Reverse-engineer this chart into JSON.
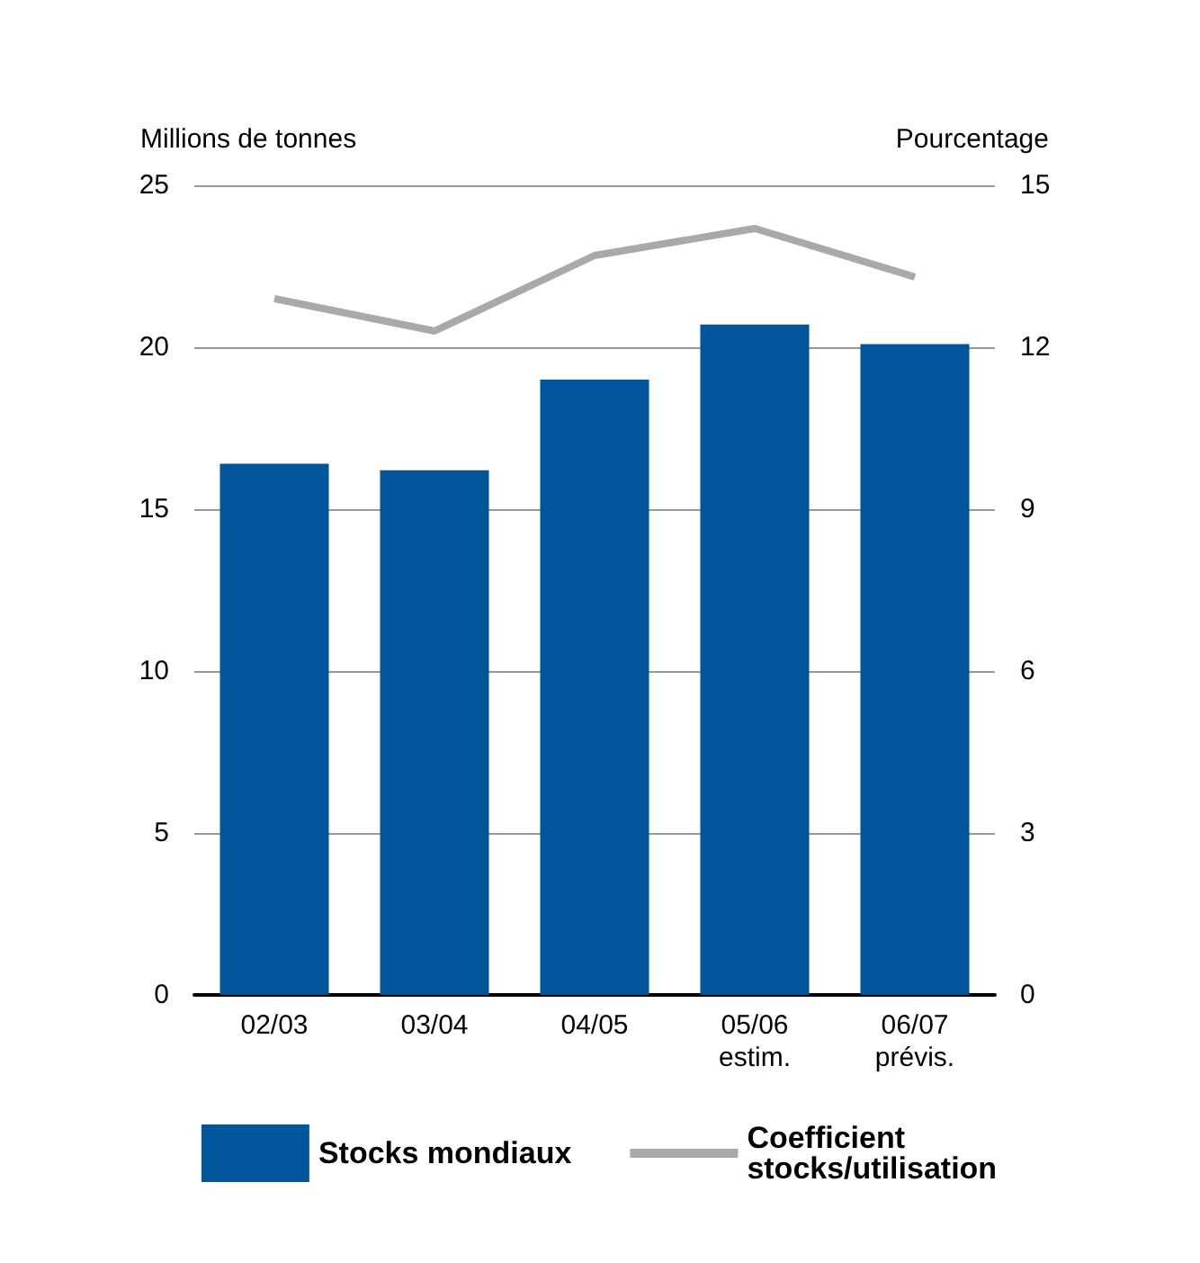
{
  "chart_data": {
    "type": "bar",
    "ylabel": "Millions de tonnes",
    "y2label": "Pourcentage",
    "categories": [
      "02/03",
      "03/04",
      "04/05",
      "05/06\nestim.",
      "06/07\nprévis."
    ],
    "series": [
      {
        "name": "Stocks mondiaux",
        "color": "#00559b",
        "values": [
          16.4,
          16.2,
          19.0,
          20.7,
          20.1
        ]
      },
      {
        "name": "Coefficient\nstocks/utilisation",
        "type": "line",
        "axis": "y2",
        "color": "#a7a9ac",
        "values": [
          12.9,
          12.3,
          13.7,
          14.2,
          13.3
        ]
      }
    ],
    "ylim": [
      0,
      25
    ],
    "yticks": [
      0,
      5,
      10,
      15,
      20,
      25
    ],
    "y2lim": [
      0,
      15
    ],
    "y2ticks": [
      0,
      3,
      6,
      9,
      12,
      15
    ],
    "grid": "y",
    "legend": "bottom",
    "marker": "none"
  }
}
